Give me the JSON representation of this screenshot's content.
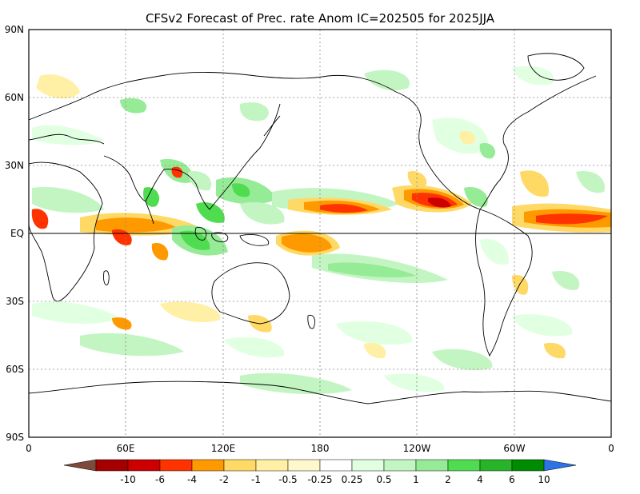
{
  "title": "CFSv2 Forecast of Prec. rate Anom IC=202505 for 2025JJA",
  "map": {
    "lat_labels": [
      "90N",
      "60N",
      "30N",
      "EQ",
      "30S",
      "60S",
      "90S"
    ],
    "lon_labels": [
      "0",
      "60E",
      "120E",
      "180",
      "120W",
      "60W",
      "0"
    ],
    "gridlines": "dotted every 30° latitude and 60° longitude; solid equator line"
  },
  "colorbar": {
    "levels": [
      "-10",
      "-6",
      "-4",
      "-2",
      "-1",
      "-0.5",
      "-0.25",
      "0.25",
      "0.5",
      "1",
      "2",
      "4",
      "6",
      "10"
    ],
    "colors": [
      "#7f4a3a",
      "#a50000",
      "#cc0000",
      "#ff3300",
      "#ff9900",
      "#ffd966",
      "#fff0a6",
      "#fff8cc",
      "#ffffff",
      "#e1ffe1",
      "#c3f5c3",
      "#96eb96",
      "#50dc50",
      "#28b428",
      "#008c00",
      "#2c73e6"
    ]
  }
}
